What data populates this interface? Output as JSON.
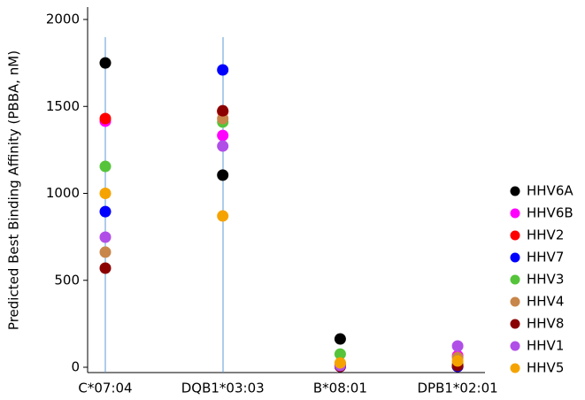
{
  "chart_data": {
    "type": "scatter",
    "y_label": "Predicted Best Binding Affinity (PBBA, nM)",
    "categories": [
      "C*07:04",
      "DQB1*03:03",
      "B*08:01",
      "DPB1*02:01"
    ],
    "ylim": [
      0,
      2000
    ],
    "yticks": [
      0,
      500,
      1000,
      1500,
      2000
    ],
    "series": [
      {
        "name": "HHV6A",
        "color": "#000000",
        "values": [
          1750,
          1105,
          163,
          5
        ]
      },
      {
        "name": "HHV6B",
        "color": "#ff00ff",
        "values": [
          1415,
          1333,
          10,
          66
        ]
      },
      {
        "name": "HHV2",
        "color": "#ff0000",
        "values": [
          1430,
          1470,
          5,
          5
        ]
      },
      {
        "name": "HHV7",
        "color": "#0000ff",
        "values": [
          895,
          1710,
          5,
          5
        ]
      },
      {
        "name": "HHV3",
        "color": "#55c43a",
        "values": [
          1155,
          1410,
          76,
          20
        ]
      },
      {
        "name": "HHV4",
        "color": "#c8864a",
        "values": [
          662,
          1430,
          20,
          56
        ]
      },
      {
        "name": "HHV8",
        "color": "#8b0000",
        "values": [
          570,
          1475,
          5,
          10
        ]
      },
      {
        "name": "HHV1",
        "color": "#b04fe8",
        "values": [
          748,
          1272,
          10,
          122
        ]
      },
      {
        "name": "HHV5",
        "color": "#f5a300",
        "values": [
          1000,
          870,
          25,
          36
        ]
      }
    ]
  }
}
